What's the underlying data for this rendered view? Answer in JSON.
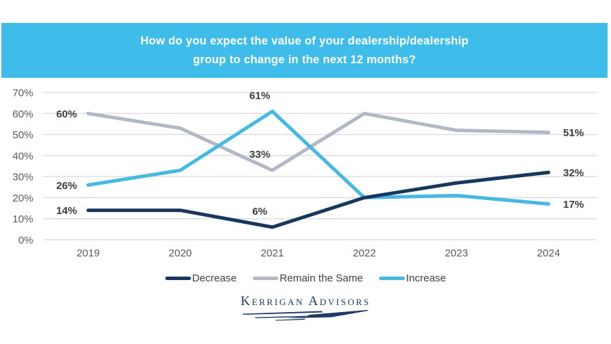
{
  "title": {
    "line1": "How do you expect the value of your dealership/dealership",
    "line2": "group to change in the next 12 months?"
  },
  "chart_data": {
    "type": "line",
    "x": [
      2019,
      2020,
      2021,
      2022,
      2023,
      2024
    ],
    "series": [
      {
        "name": "Decrease",
        "color": "#17375e",
        "values": [
          14,
          14,
          6,
          20,
          27,
          32
        ]
      },
      {
        "name": "Remain the Same",
        "color": "#b3b8c5",
        "values": [
          60,
          53,
          33,
          60,
          52,
          51
        ]
      },
      {
        "name": "Increase",
        "color": "#45b9e2",
        "values": [
          26,
          33,
          61,
          20,
          21,
          17
        ]
      }
    ],
    "ylim": [
      0,
      70
    ],
    "y_tick_step": 10,
    "y_tick_suffix": "%",
    "grid": true,
    "legend_position": "bottom",
    "point_labels": [
      {
        "year": 2019,
        "series": "Remain the Same",
        "text": "60%",
        "placement": "left"
      },
      {
        "year": 2019,
        "series": "Increase",
        "text": "26%",
        "placement": "left"
      },
      {
        "year": 2019,
        "series": "Decrease",
        "text": "14%",
        "placement": "left"
      },
      {
        "year": 2021,
        "series": "Increase",
        "text": "61%",
        "placement": "above"
      },
      {
        "year": 2021,
        "series": "Remain the Same",
        "text": "33%",
        "placement": "above"
      },
      {
        "year": 2021,
        "series": "Decrease",
        "text": "6%",
        "placement": "above"
      },
      {
        "year": 2024,
        "series": "Remain the Same",
        "text": "51%",
        "placement": "right"
      },
      {
        "year": 2024,
        "series": "Decrease",
        "text": "32%",
        "placement": "right"
      },
      {
        "year": 2024,
        "series": "Increase",
        "text": "17%",
        "placement": "right"
      }
    ]
  },
  "legend": {
    "items": [
      {
        "label": "Decrease",
        "color": "#17375e"
      },
      {
        "label": "Remain the Same",
        "color": "#b3b8c5"
      },
      {
        "label": "Increase",
        "color": "#45b9e2"
      }
    ]
  },
  "logo": {
    "text": "Kerrigan Advisors"
  },
  "colors": {
    "banner_bg": "#3fbdea",
    "banner_text": "#ffffff",
    "gridline": "#d9d9d9",
    "axis_text": "#595959",
    "data_label_text": "#3d3d3d",
    "logo_navy": "#1f3864"
  }
}
